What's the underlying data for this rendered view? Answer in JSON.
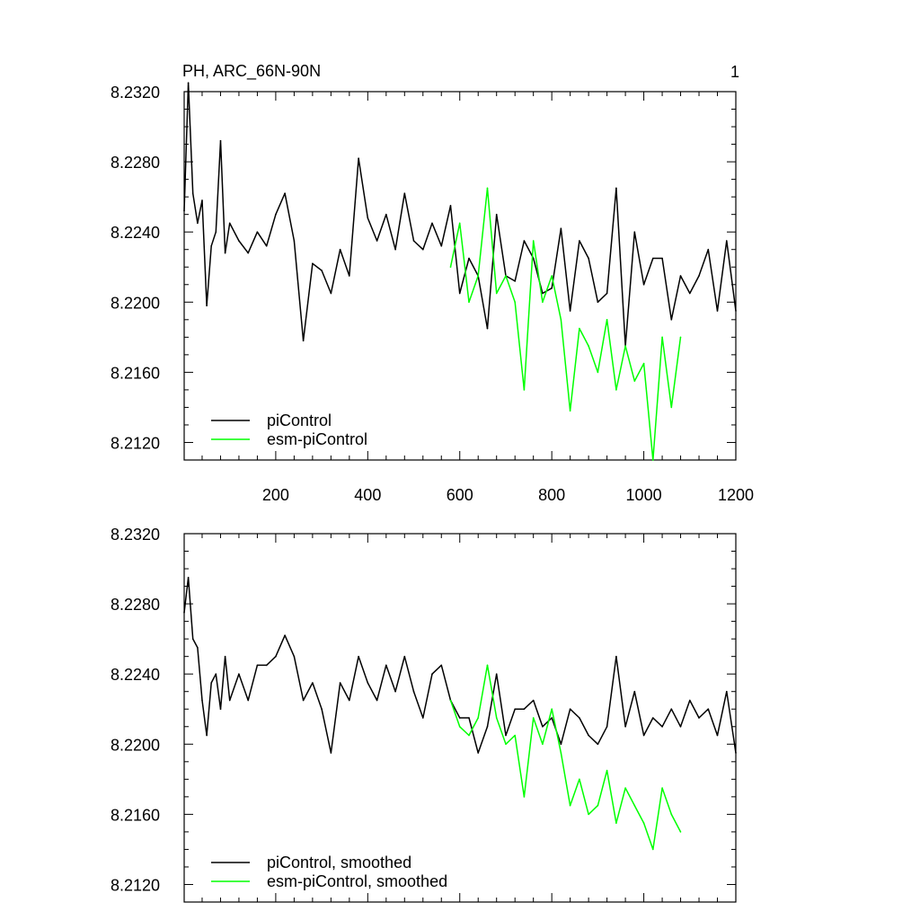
{
  "panel_label": "1",
  "chart_data": [
    {
      "type": "line",
      "title": "PH, ARC_66N-90N",
      "xlabel": "",
      "ylabel": "",
      "xlim": [
        1,
        1200
      ],
      "ylim": [
        8.211,
        8.232
      ],
      "x_ticks": [
        200,
        400,
        600,
        800,
        1000,
        1200
      ],
      "y_ticks": [
        "8.2120",
        "8.2160",
        "8.2200",
        "8.2240",
        "8.2280",
        "8.2320"
      ],
      "grid": false,
      "legend_position": "bottom-left",
      "series": [
        {
          "name": "piControl",
          "color": "#000000",
          "x": [
            1,
            10,
            20,
            30,
            40,
            50,
            60,
            70,
            80,
            90,
            100,
            120,
            140,
            160,
            180,
            200,
            220,
            240,
            260,
            280,
            300,
            320,
            340,
            360,
            380,
            400,
            420,
            440,
            460,
            480,
            500,
            520,
            540,
            560,
            580,
            600,
            620,
            640,
            660,
            680,
            700,
            720,
            740,
            760,
            780,
            800,
            820,
            840,
            860,
            880,
            900,
            920,
            940,
            960,
            980,
            1000,
            1020,
            1040,
            1060,
            1080,
            1100,
            1120,
            1140,
            1160,
            1180,
            1200
          ],
          "values": [
            8.2252,
            8.2325,
            8.2262,
            8.2245,
            8.2258,
            8.2198,
            8.2232,
            8.224,
            8.2292,
            8.2228,
            8.2245,
            8.2235,
            8.2228,
            8.224,
            8.2232,
            8.225,
            8.2262,
            8.2235,
            8.2178,
            8.2222,
            8.2218,
            8.2205,
            8.223,
            8.2215,
            8.2282,
            8.2248,
            8.2235,
            8.225,
            8.223,
            8.2262,
            8.2235,
            8.223,
            8.2245,
            8.2232,
            8.2255,
            8.2205,
            8.2225,
            8.2215,
            8.2185,
            8.225,
            8.2215,
            8.2212,
            8.2235,
            8.2225,
            8.2205,
            8.2208,
            8.2242,
            8.2195,
            8.2235,
            8.2225,
            8.22,
            8.2205,
            8.2265,
            8.2175,
            8.224,
            8.221,
            8.2225,
            8.2225,
            8.219,
            8.2215,
            8.2205,
            8.2215,
            8.223,
            8.2195,
            8.2235,
            8.2195
          ]
        },
        {
          "name": "esm-piControl",
          "color": "#00ff00",
          "x": [
            580,
            600,
            620,
            640,
            660,
            680,
            700,
            720,
            740,
            760,
            780,
            800,
            820,
            840,
            860,
            880,
            900,
            920,
            940,
            960,
            980,
            1000,
            1020,
            1040,
            1060,
            1080
          ],
          "values": [
            8.222,
            8.2245,
            8.22,
            8.2215,
            8.2265,
            8.2205,
            8.2215,
            8.22,
            8.215,
            8.2235,
            8.22,
            8.2215,
            8.219,
            8.2138,
            8.2185,
            8.2175,
            8.216,
            8.219,
            8.215,
            8.2175,
            8.2155,
            8.2165,
            8.211,
            8.218,
            8.214,
            8.218
          ]
        }
      ]
    },
    {
      "type": "line",
      "title": "",
      "xlabel": "",
      "ylabel": "",
      "xlim": [
        1,
        1200
      ],
      "ylim": [
        8.211,
        8.232
      ],
      "x_ticks": [],
      "y_ticks": [
        "8.2120",
        "8.2160",
        "8.2200",
        "8.2240",
        "8.2280",
        "8.2320"
      ],
      "grid": false,
      "legend_position": "bottom-left",
      "series": [
        {
          "name": "piControl, smoothed",
          "color": "#000000",
          "x": [
            1,
            10,
            20,
            30,
            40,
            50,
            60,
            70,
            80,
            90,
            100,
            120,
            140,
            160,
            180,
            200,
            220,
            240,
            260,
            280,
            300,
            320,
            340,
            360,
            380,
            400,
            420,
            440,
            460,
            480,
            500,
            520,
            540,
            560,
            580,
            600,
            620,
            640,
            660,
            680,
            700,
            720,
            740,
            760,
            780,
            800,
            820,
            840,
            860,
            880,
            900,
            920,
            940,
            960,
            980,
            1000,
            1020,
            1040,
            1060,
            1080,
            1100,
            1120,
            1140,
            1160,
            1180,
            1200
          ],
          "values": [
            8.2275,
            8.2295,
            8.226,
            8.2255,
            8.2225,
            8.2205,
            8.2235,
            8.224,
            8.222,
            8.225,
            8.2225,
            8.224,
            8.2225,
            8.2245,
            8.2245,
            8.225,
            8.2262,
            8.225,
            8.2225,
            8.2235,
            8.222,
            8.2195,
            8.2235,
            8.2225,
            8.225,
            8.2235,
            8.2225,
            8.2245,
            8.223,
            8.225,
            8.223,
            8.2215,
            8.224,
            8.2245,
            8.2225,
            8.2215,
            8.2215,
            8.2195,
            8.221,
            8.224,
            8.2205,
            8.222,
            8.222,
            8.2225,
            8.221,
            8.2215,
            8.22,
            8.222,
            8.2215,
            8.2205,
            8.22,
            8.221,
            8.225,
            8.221,
            8.223,
            8.2205,
            8.2215,
            8.221,
            8.222,
            8.221,
            8.2225,
            8.2215,
            8.222,
            8.2205,
            8.223,
            8.2195
          ]
        },
        {
          "name": "esm-piControl, smoothed",
          "color": "#00ff00",
          "x": [
            580,
            600,
            620,
            640,
            660,
            680,
            700,
            720,
            740,
            760,
            780,
            800,
            820,
            840,
            860,
            880,
            900,
            920,
            940,
            960,
            980,
            1000,
            1020,
            1040,
            1060,
            1080
          ],
          "values": [
            8.2225,
            8.221,
            8.2205,
            8.2215,
            8.2245,
            8.2215,
            8.22,
            8.2205,
            8.217,
            8.2215,
            8.22,
            8.222,
            8.2195,
            8.2165,
            8.218,
            8.216,
            8.2165,
            8.2185,
            8.2155,
            8.2175,
            8.2165,
            8.2155,
            8.214,
            8.2175,
            8.216,
            8.215
          ]
        }
      ]
    }
  ]
}
